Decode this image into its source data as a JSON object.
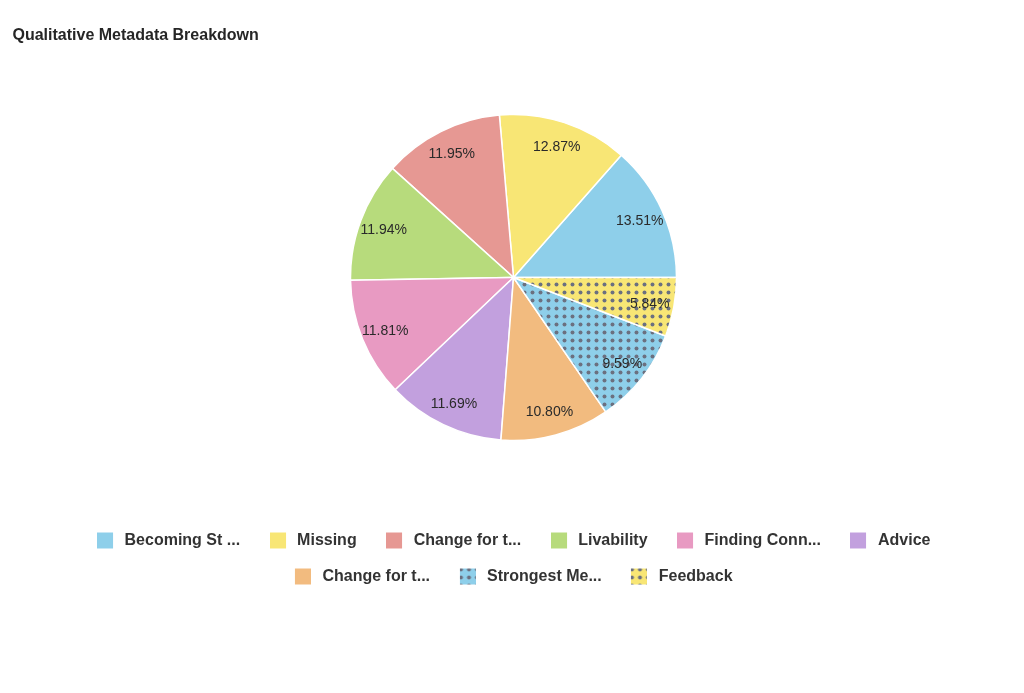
{
  "chart_data": {
    "type": "pie",
    "title": "Qualitative Metadata Breakdown",
    "categories": [
      "Becoming St ...",
      "Missing",
      "Change for t...",
      "Livability",
      "Finding Conn...",
      "Advice",
      "Change for t...",
      "Strongest Me...",
      "Feedback"
    ],
    "values": [
      13.51,
      12.87,
      11.95,
      11.94,
      11.81,
      11.69,
      10.8,
      9.59,
      5.84
    ],
    "colors": [
      "#8ecfea",
      "#f8e675",
      "#e69893",
      "#b7db7c",
      "#e89ac2",
      "#c2a0de",
      "#f2bb7f",
      "#8ecfea",
      "#f8e675"
    ],
    "value_labels": [
      "13.51%",
      "12.87%",
      "11.95%",
      "11.94%",
      "11.81%",
      "11.69%",
      "10.80%",
      "9.59%",
      "5.84%"
    ],
    "legend": "bottom"
  }
}
